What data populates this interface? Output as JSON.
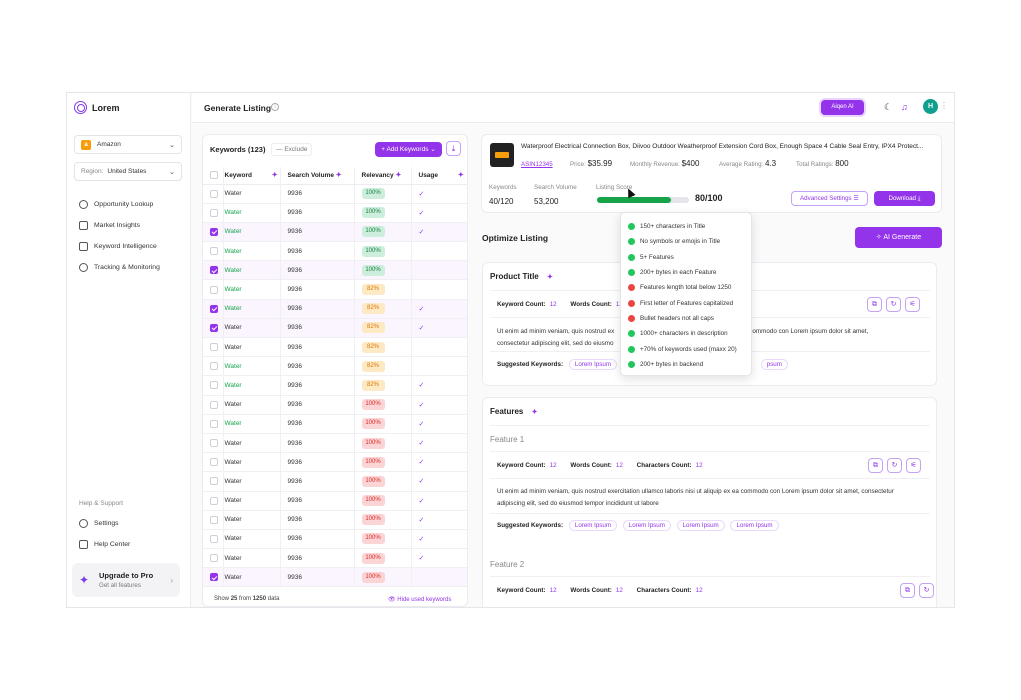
{
  "app": {
    "name": "Lorem"
  },
  "sidebar": {
    "marketplace": "Amazon",
    "region_label": "Region:",
    "region_value": "United States",
    "nav": [
      {
        "label": "Opportunity Lookup",
        "icon": "compass-icon"
      },
      {
        "label": "Market Insights",
        "icon": "chart-icon"
      },
      {
        "label": "Keyword Intelligence",
        "icon": "document-icon"
      },
      {
        "label": "Tracking & Monitoring",
        "icon": "target-icon"
      }
    ],
    "help_heading": "Help & Support",
    "settings": "Settings",
    "help_center": "Help Center",
    "upgrade_title": "Upgrade to Pro",
    "upgrade_sub": "Get all features"
  },
  "topbar": {
    "title": "Generate Listing",
    "ai_button": "Aiqen AI",
    "avatar": "H"
  },
  "keywords": {
    "title": "Keywords (123)",
    "exclude": "Exclude",
    "add_button": "Add Keywords",
    "columns": [
      "Keyword",
      "Search Volume",
      "Relevancy",
      "Usage"
    ],
    "rows": [
      {
        "kw": "Water",
        "vol": "9936",
        "rel": "100%",
        "tone": "g",
        "checked": false,
        "green": false,
        "used": true
      },
      {
        "kw": "Water",
        "vol": "9936",
        "rel": "100%",
        "tone": "g",
        "checked": false,
        "green": true,
        "used": true
      },
      {
        "kw": "Water",
        "vol": "9936",
        "rel": "100%",
        "tone": "g",
        "checked": true,
        "green": true,
        "used": true
      },
      {
        "kw": "Water",
        "vol": "9936",
        "rel": "100%",
        "tone": "g",
        "checked": false,
        "green": true,
        "used": false
      },
      {
        "kw": "Water",
        "vol": "9936",
        "rel": "100%",
        "tone": "g",
        "checked": true,
        "green": true,
        "used": false
      },
      {
        "kw": "Water",
        "vol": "9936",
        "rel": "82%",
        "tone": "y",
        "checked": false,
        "green": true,
        "used": false
      },
      {
        "kw": "Water",
        "vol": "9936",
        "rel": "82%",
        "tone": "y",
        "checked": true,
        "green": true,
        "used": true
      },
      {
        "kw": "Water",
        "vol": "9936",
        "rel": "82%",
        "tone": "y",
        "checked": true,
        "green": false,
        "used": true
      },
      {
        "kw": "Water",
        "vol": "9936",
        "rel": "82%",
        "tone": "y",
        "checked": false,
        "green": false,
        "used": false
      },
      {
        "kw": "Water",
        "vol": "9936",
        "rel": "82%",
        "tone": "y",
        "checked": false,
        "green": true,
        "used": false
      },
      {
        "kw": "Water",
        "vol": "9936",
        "rel": "82%",
        "tone": "y",
        "checked": false,
        "green": true,
        "used": true
      },
      {
        "kw": "Water",
        "vol": "9936",
        "rel": "100%",
        "tone": "r",
        "checked": false,
        "green": false,
        "used": true
      },
      {
        "kw": "Water",
        "vol": "9936",
        "rel": "100%",
        "tone": "r",
        "checked": false,
        "green": true,
        "used": true
      },
      {
        "kw": "Water",
        "vol": "9936",
        "rel": "100%",
        "tone": "r",
        "checked": false,
        "green": false,
        "used": true
      },
      {
        "kw": "Water",
        "vol": "9936",
        "rel": "100%",
        "tone": "r",
        "checked": false,
        "green": false,
        "used": true
      },
      {
        "kw": "Water",
        "vol": "9936",
        "rel": "100%",
        "tone": "r",
        "checked": false,
        "green": false,
        "used": true
      },
      {
        "kw": "Water",
        "vol": "9936",
        "rel": "100%",
        "tone": "r",
        "checked": false,
        "green": false,
        "used": true
      },
      {
        "kw": "Water",
        "vol": "9936",
        "rel": "100%",
        "tone": "r",
        "checked": false,
        "green": false,
        "used": true
      },
      {
        "kw": "Water",
        "vol": "9936",
        "rel": "100%",
        "tone": "r",
        "checked": false,
        "green": false,
        "used": true
      },
      {
        "kw": "Water",
        "vol": "9936",
        "rel": "100%",
        "tone": "r",
        "checked": false,
        "green": false,
        "used": true
      },
      {
        "kw": "Water",
        "vol": "9936",
        "rel": "100%",
        "tone": "r",
        "checked": true,
        "green": false,
        "used": false
      }
    ],
    "footer_show": "Show",
    "footer_count": "25",
    "footer_from": "from",
    "footer_total": "1250",
    "footer_data": "data",
    "hide_used": "Hide used keywords"
  },
  "product": {
    "title": "Waterproof Electrical Connection Box, Diivoo Outdoor Weatherproof Extension Cord Box, Enough Space 4 Cable Seal Entry, IPX4 Protect...",
    "asin": "ASIN12345",
    "price_label": "Price:",
    "price": "$35.99",
    "revenue_label": "Monthly Revenue:",
    "revenue": "$400",
    "rating_label": "Average Rating:",
    "rating": "4.3",
    "ratings_label": "Total Ratings:",
    "ratings": "800",
    "keywords_label": "Keywords",
    "keywords_value": "40/120",
    "volume_label": "Search Volume",
    "volume_value": "53,200",
    "score_label": "Listing Score",
    "score_value": "80/100",
    "score_fraction": 0.8,
    "advanced": "Advanced Settings",
    "download": "Download"
  },
  "optimize": {
    "title": "Optimize Listing",
    "ai_generate": "AI Generate",
    "product_title": "Product Title",
    "kw_count_label": "Keyword Count:",
    "words_count_label": "Words Count:",
    "chars_count_label": "Characters Count:",
    "count_value": "12",
    "pt_text_1": "Ut enim ad minim veniam, quis nostrud ex",
    "pt_text_1b": "commodo con Lorem ipsum dolor sit amet,",
    "pt_text_2": "consectetur adipiscing elit, sed do eiusmo",
    "suggested_label": "Suggested Keywords:",
    "tag": "Lorem Ipsum",
    "pt_tag_partial": "psum",
    "features_title": "Features",
    "feature1": "Feature 1",
    "f1_text_1": "Ut enim ad minim veniam, quis nostrud exercitation ullamco laboris nisi ut aliquip ex ea commodo con Lorem ipsum dolor sit amet, consectetur",
    "f1_text_2": "adipiscing elit, sed do eiusmod tempor incididunt ut labore",
    "feature2": "Feature 2"
  },
  "score_checklist": [
    {
      "text": "150+ characters in Title",
      "ok": true
    },
    {
      "text": "No symbols or emojis in Title",
      "ok": true
    },
    {
      "text": "5+ Features",
      "ok": true
    },
    {
      "text": "200+ bytes in each Feature",
      "ok": true
    },
    {
      "text": "Features length total below 1250",
      "ok": false
    },
    {
      "text": "First letter of Features capitalized",
      "ok": false
    },
    {
      "text": "Bullet headers not all caps",
      "ok": false
    },
    {
      "text": "1000+ characters in description",
      "ok": true
    },
    {
      "text": "+70% of keywords used (maxx 20)",
      "ok": true
    },
    {
      "text": "200+ bytes in backend",
      "ok": true
    }
  ],
  "colors": {
    "accent": "#9333ea",
    "success": "#22c55e",
    "danger": "#ef4444"
  }
}
